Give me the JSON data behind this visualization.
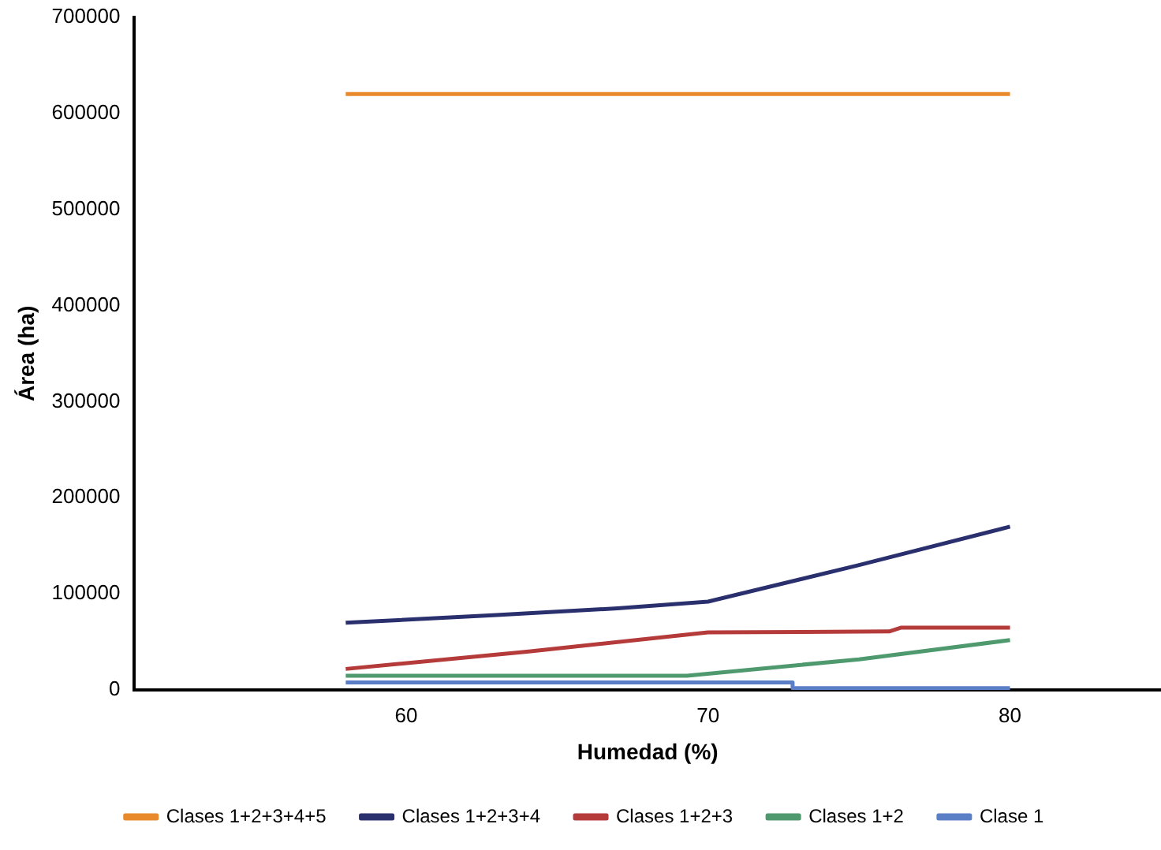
{
  "chart_data": {
    "type": "line",
    "xlabel": "Humedad (%)",
    "ylabel": "Área (ha)",
    "xlim": [
      51,
      85
    ],
    "xticks": [
      60,
      70,
      80
    ],
    "ylim": [
      0,
      700000
    ],
    "yticks": [
      0,
      100000,
      200000,
      300000,
      400000,
      500000,
      600000,
      700000
    ],
    "grid": false,
    "legend": "bottom",
    "marker": "none",
    "line_style": "solid",
    "series": [
      {
        "name": "Clases 1+2+3+4+5",
        "color": "#e8892c",
        "x": [
          58,
          80
        ],
        "values": [
          620000,
          620000
        ]
      },
      {
        "name": "Clases 1+2+3+4",
        "color": "#2a2f6e",
        "x": [
          58,
          63,
          67,
          70,
          75,
          80
        ],
        "values": [
          70000,
          78000,
          85000,
          92000,
          130000,
          170000
        ]
      },
      {
        "name": "Clases 1+2+3",
        "color": "#b53a3a",
        "x": [
          58,
          64,
          70,
          76,
          76.4,
          80
        ],
        "values": [
          22000,
          40000,
          60000,
          61000,
          65000,
          65000
        ]
      },
      {
        "name": "Clases 1+2",
        "color": "#4e9a6e",
        "x": [
          58,
          69.3,
          75,
          80
        ],
        "values": [
          15000,
          15000,
          32000,
          52000
        ]
      },
      {
        "name": "Clase 1",
        "color": "#5b7fc7",
        "x": [
          58,
          72.8,
          72.8,
          80
        ],
        "values": [
          8000,
          8000,
          2000,
          2000
        ]
      }
    ]
  }
}
